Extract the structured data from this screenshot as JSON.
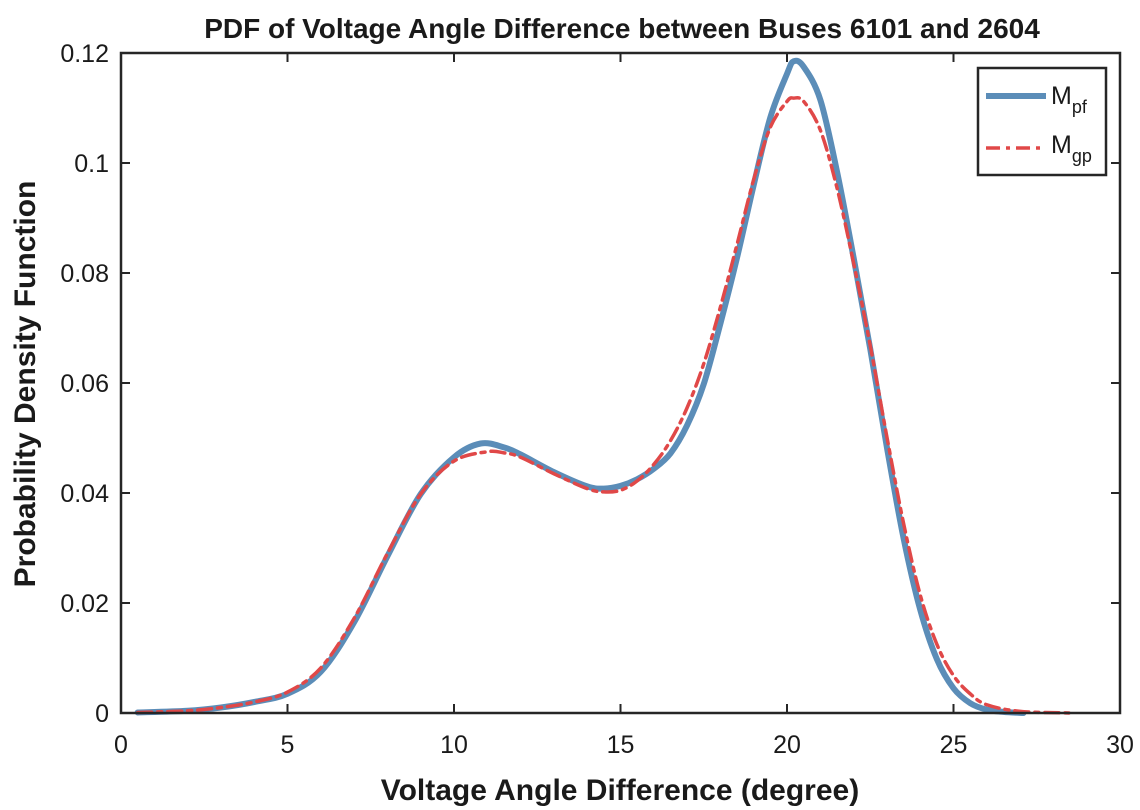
{
  "chart_data": {
    "type": "line",
    "title": "PDF of Voltage Angle Difference between Buses 6101 and 2604",
    "xlabel": "Voltage Angle Difference (degree)",
    "ylabel": "Probability Density Function",
    "xlim": [
      0,
      30
    ],
    "ylim": [
      0,
      0.12
    ],
    "xticks": [
      0,
      5,
      10,
      15,
      20,
      25,
      30
    ],
    "xtick_labels": [
      "0",
      "5",
      "10",
      "15",
      "20",
      "25",
      "30"
    ],
    "yticks": [
      0,
      0.02,
      0.04,
      0.06,
      0.08,
      0.1,
      0.12
    ],
    "ytick_labels": [
      "0",
      "0.02",
      "0.04",
      "0.06",
      "0.08",
      "0.1",
      "0.12"
    ],
    "grid": false,
    "legend_position": "top-right",
    "series": [
      {
        "name": "M",
        "subscript": "pf",
        "color": "#5b8db8",
        "style": "solid",
        "x": [
          0.5,
          2,
          3,
          4,
          5,
          6,
          7,
          8,
          9,
          10,
          10.8,
          11.5,
          12,
          13,
          14,
          14.5,
          15,
          15.5,
          16,
          16.5,
          17,
          17.5,
          18,
          18.5,
          19,
          19.5,
          20,
          20.2,
          20.5,
          21,
          21.5,
          22,
          22.5,
          23,
          23.5,
          24,
          24.5,
          25,
          25.5,
          26,
          26.5,
          27.1
        ],
        "y": [
          0.0001,
          0.0004,
          0.001,
          0.002,
          0.0035,
          0.0075,
          0.0165,
          0.0285,
          0.0398,
          0.0465,
          0.049,
          0.0483,
          0.047,
          0.0438,
          0.0412,
          0.0408,
          0.0413,
          0.0425,
          0.0444,
          0.0472,
          0.0523,
          0.0598,
          0.0708,
          0.0828,
          0.096,
          0.1083,
          0.1162,
          0.1185,
          0.1175,
          0.1115,
          0.0985,
          0.0828,
          0.0662,
          0.0483,
          0.0318,
          0.0188,
          0.0098,
          0.0045,
          0.0018,
          0.0006,
          0.0002,
          0.0
        ]
      },
      {
        "name": "M",
        "subscript": "gp",
        "color": "#e04848",
        "style": "dash-dot",
        "x": [
          0.5,
          2,
          3,
          4,
          5,
          6,
          7,
          8,
          9,
          10,
          11,
          11.5,
          12,
          13,
          14,
          14.5,
          15,
          15.5,
          16,
          16.5,
          17,
          17.5,
          18,
          18.5,
          19,
          19.5,
          20,
          20.2,
          20.5,
          21,
          21.5,
          22,
          22.5,
          23,
          23.5,
          24,
          24.5,
          25,
          25.5,
          26,
          27,
          28.5
        ],
        "y": [
          0.0001,
          0.0004,
          0.001,
          0.002,
          0.0038,
          0.0082,
          0.0172,
          0.029,
          0.0398,
          0.0458,
          0.0475,
          0.0473,
          0.0465,
          0.0435,
          0.0408,
          0.0402,
          0.0405,
          0.0422,
          0.0452,
          0.0495,
          0.0555,
          0.0635,
          0.0738,
          0.0852,
          0.097,
          0.1065,
          0.1112,
          0.1118,
          0.1112,
          0.106,
          0.0955,
          0.0818,
          0.0668,
          0.0502,
          0.0345,
          0.0215,
          0.0125,
          0.0068,
          0.0035,
          0.0015,
          0.0003,
          0.0
        ]
      }
    ]
  }
}
